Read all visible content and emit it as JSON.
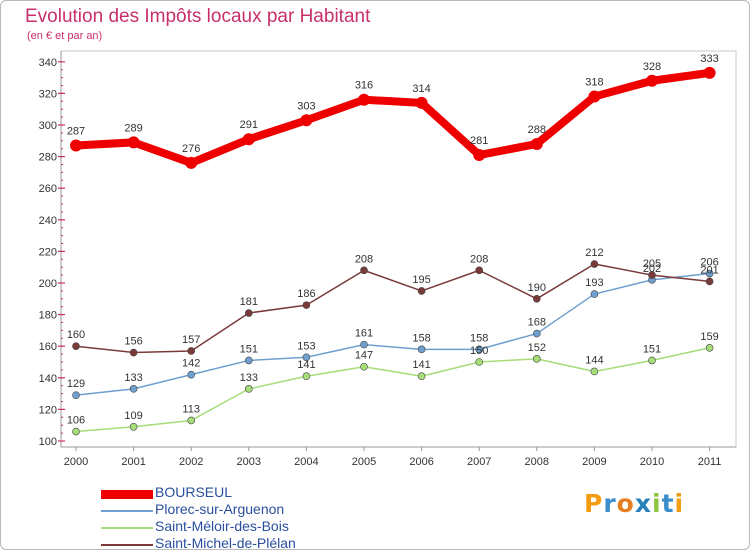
{
  "title": "Evolution des Impôts locaux par Habitant",
  "subtitle": "(en € et par an)",
  "logo": {
    "text": "Proxiti",
    "letters": [
      "P",
      "r",
      "o",
      "x",
      "i",
      "t",
      "i"
    ],
    "colors": [
      "#f39c12",
      "#3c8dcc",
      "#e67e22",
      "#2980b9",
      "#8cc63f",
      "#3c8dcc",
      "#f39c12"
    ]
  },
  "chart_data": {
    "type": "line",
    "x": [
      "2000",
      "2001",
      "2002",
      "2003",
      "2004",
      "2005",
      "2006",
      "2007",
      "2008",
      "2009",
      "2010",
      "2011"
    ],
    "ylim": [
      100,
      340
    ],
    "yticks": [
      "100",
      "120",
      "140",
      "160",
      "180",
      "200",
      "220",
      "240",
      "260",
      "280",
      "300",
      "320",
      "340"
    ],
    "grid": false,
    "legend_position": "bottom-left",
    "series": [
      {
        "name": "BOURSEUL",
        "values": [
          287,
          289,
          276,
          291,
          303,
          316,
          314,
          281,
          288,
          318,
          328,
          333
        ],
        "color": "#ee0000",
        "labels": [
          "287",
          "289",
          "276",
          "291",
          "303",
          "316",
          "314",
          "281",
          "288",
          "318",
          "328",
          "333"
        ]
      },
      {
        "name": "Plorec-sur-Arguenon",
        "values": [
          129,
          133,
          142,
          151,
          153,
          161,
          158,
          158,
          168,
          193,
          202,
          206
        ],
        "color": "#6f9fcf",
        "labels": [
          "129",
          "133",
          "142",
          "151",
          "153",
          "161",
          "158",
          "158",
          "168",
          "193",
          "202",
          "206"
        ]
      },
      {
        "name": "Saint-Méloir-des-Bois",
        "values": [
          106,
          109,
          113,
          133,
          141,
          147,
          141,
          150,
          152,
          144,
          151,
          159
        ],
        "color": "#a6dd78",
        "labels": [
          "106",
          "109",
          "113",
          "133",
          "141",
          "147",
          "141",
          "150",
          "152",
          "144",
          "151",
          "159"
        ]
      },
      {
        "name": "Saint-Michel-de-Plélan",
        "values": [
          160,
          156,
          157,
          181,
          186,
          208,
          195,
          208,
          190,
          212,
          205,
          201
        ],
        "color": "#7a3a3a",
        "labels": [
          "160",
          "156",
          "157",
          "181",
          "186",
          "208",
          "195",
          "208",
          "190",
          "212",
          "205",
          "201"
        ]
      }
    ]
  }
}
